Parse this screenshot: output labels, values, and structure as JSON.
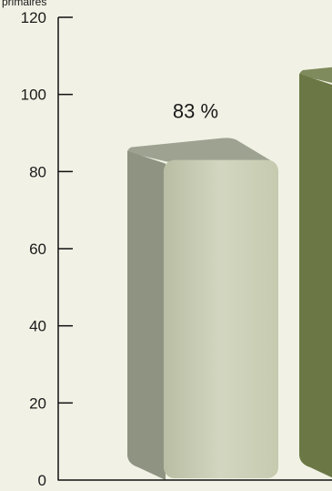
{
  "chart_data": {
    "type": "bar",
    "ylabel": "primaires",
    "ylim": [
      0,
      120
    ],
    "yticks": [
      0,
      20,
      40,
      60,
      80,
      100,
      120
    ],
    "grid": false,
    "series": [
      {
        "values": [
          83,
          103
        ]
      }
    ],
    "data_labels": [
      "83 %",
      ""
    ],
    "bar_colors": [
      "#c8ccb3",
      "#7c8a54"
    ],
    "bar_side_colors": [
      "#8f9482",
      "#6b7845"
    ]
  }
}
